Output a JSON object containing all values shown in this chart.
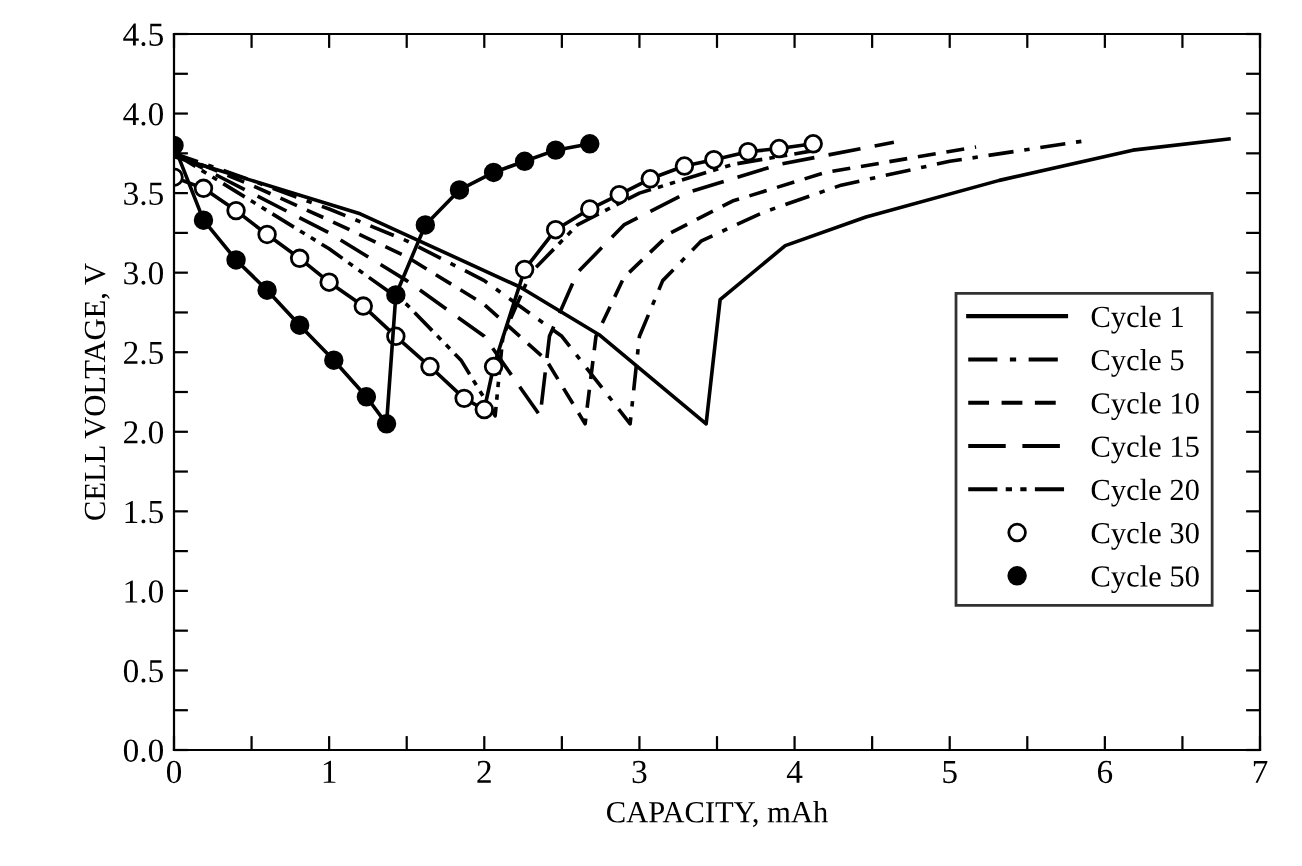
{
  "chart_data": {
    "type": "line",
    "xlabel": "CAPACITY, mAh",
    "ylabel": "CELL VOLTAGE, V",
    "xlim": [
      0,
      7
    ],
    "ylim": [
      0,
      4.5
    ],
    "xticks": [
      0,
      {
        "value": 0.5,
        "label": null
      },
      1,
      {
        "value": 1.5,
        "label": null
      },
      2,
      {
        "value": 2.5,
        "label": null
      },
      3,
      {
        "value": 3.5,
        "label": null
      },
      4,
      {
        "value": 4.5,
        "label": null
      },
      5,
      {
        "value": 5.5,
        "label": null
      },
      6,
      {
        "value": 6.5,
        "label": null
      },
      7
    ],
    "yticks": [
      {
        "value": 0,
        "label": "0.0"
      },
      {
        "value": 0.25,
        "label": null
      },
      0.5,
      {
        "value": 0.75,
        "label": null
      },
      {
        "value": 1,
        "label": "1.0"
      },
      {
        "value": 1.25,
        "label": null
      },
      1.5,
      {
        "value": 1.75,
        "label": null
      },
      {
        "value": 2,
        "label": "2.0"
      },
      {
        "value": 2.25,
        "label": null
      },
      2.5,
      {
        "value": 2.75,
        "label": null
      },
      {
        "value": 3,
        "label": "3.0"
      },
      {
        "value": 3.25,
        "label": null
      },
      3.5,
      {
        "value": 3.75,
        "label": null
      },
      {
        "value": 4,
        "label": "4.0"
      },
      {
        "value": 4.25,
        "label": null
      },
      4.5
    ],
    "grid": false,
    "legend": "right",
    "series": [
      {
        "name": "Cycle 1",
        "color": "#000000",
        "line_style": "solid",
        "marker": "none",
        "x": [
          0,
          0.5,
          1.2,
          2.23,
          2.74,
          3.43,
          3.52,
          3.94,
          4.46,
          5.32,
          6.18,
          6.8
        ],
        "values": [
          3.73,
          3.58,
          3.37,
          2.91,
          2.61,
          2.05,
          2.83,
          3.17,
          3.35,
          3.58,
          3.77,
          3.84
        ]
      },
      {
        "name": "Cycle 5",
        "color": "#000000",
        "line_style": "dashdot",
        "marker": "none",
        "x": [
          0,
          0.5,
          1,
          1.5,
          2,
          2.5,
          2.94,
          3.0,
          3.15,
          3.4,
          3.8,
          4.3,
          5,
          5.88
        ],
        "values": [
          3.75,
          3.58,
          3.4,
          3.2,
          2.95,
          2.6,
          2.05,
          2.6,
          2.95,
          3.2,
          3.38,
          3.55,
          3.7,
          3.83
        ]
      },
      {
        "name": "Cycle 10",
        "color": "#000000",
        "line_style": "dashed",
        "marker": "none",
        "x": [
          0,
          0.5,
          1,
          1.5,
          2,
          2.4,
          2.65,
          2.72,
          2.9,
          3.2,
          3.6,
          4.2,
          5.17
        ],
        "values": [
          3.75,
          3.55,
          3.33,
          3.1,
          2.8,
          2.45,
          2.05,
          2.6,
          2.97,
          3.25,
          3.45,
          3.63,
          3.79
        ]
      },
      {
        "name": "Cycle 15",
        "color": "#000000",
        "line_style": "longdash",
        "marker": "none",
        "x": [
          0,
          0.5,
          1,
          1.5,
          2,
          2.36,
          2.42,
          2.6,
          2.9,
          3.3,
          3.9,
          4.64
        ],
        "values": [
          3.75,
          3.5,
          3.25,
          2.95,
          2.6,
          2.1,
          2.6,
          3.0,
          3.3,
          3.5,
          3.68,
          3.82
        ]
      },
      {
        "name": "Cycle 20",
        "color": "#000000",
        "line_style": "dashdotdot",
        "marker": "none",
        "x": [
          0,
          0.5,
          1,
          1.5,
          1.85,
          2.07,
          2.12,
          2.3,
          2.6,
          3.0,
          3.6,
          4.2
        ],
        "values": [
          3.75,
          3.45,
          3.15,
          2.8,
          2.45,
          2.1,
          2.6,
          3.0,
          3.3,
          3.5,
          3.68,
          3.78
        ]
      },
      {
        "name": "Cycle 30",
        "color": "#000000",
        "line_style": "solid",
        "marker": "open circle",
        "x": [
          0,
          0.19,
          0.4,
          0.6,
          0.81,
          1.0,
          1.22,
          1.43,
          1.65,
          1.87,
          2.0,
          2.06,
          2.26,
          2.46,
          2.68,
          2.87,
          3.07,
          3.29,
          3.48,
          3.7,
          3.9,
          4.12
        ],
        "values": [
          3.6,
          3.53,
          3.39,
          3.24,
          3.09,
          2.94,
          2.79,
          2.6,
          2.41,
          2.21,
          2.14,
          2.41,
          3.02,
          3.27,
          3.4,
          3.49,
          3.59,
          3.67,
          3.71,
          3.76,
          3.78,
          3.81
        ]
      },
      {
        "name": "Cycle 50",
        "color": "#000000",
        "line_style": "solid",
        "marker": "circle",
        "x": [
          0,
          0.19,
          0.4,
          0.6,
          0.81,
          1.03,
          1.24,
          1.37,
          1.43,
          1.62,
          1.84,
          2.06,
          2.26,
          2.46,
          2.68
        ],
        "values": [
          3.8,
          3.33,
          3.08,
          2.89,
          2.67,
          2.45,
          2.22,
          2.05,
          2.86,
          3.3,
          3.52,
          3.63,
          3.7,
          3.77,
          3.81
        ]
      }
    ]
  }
}
